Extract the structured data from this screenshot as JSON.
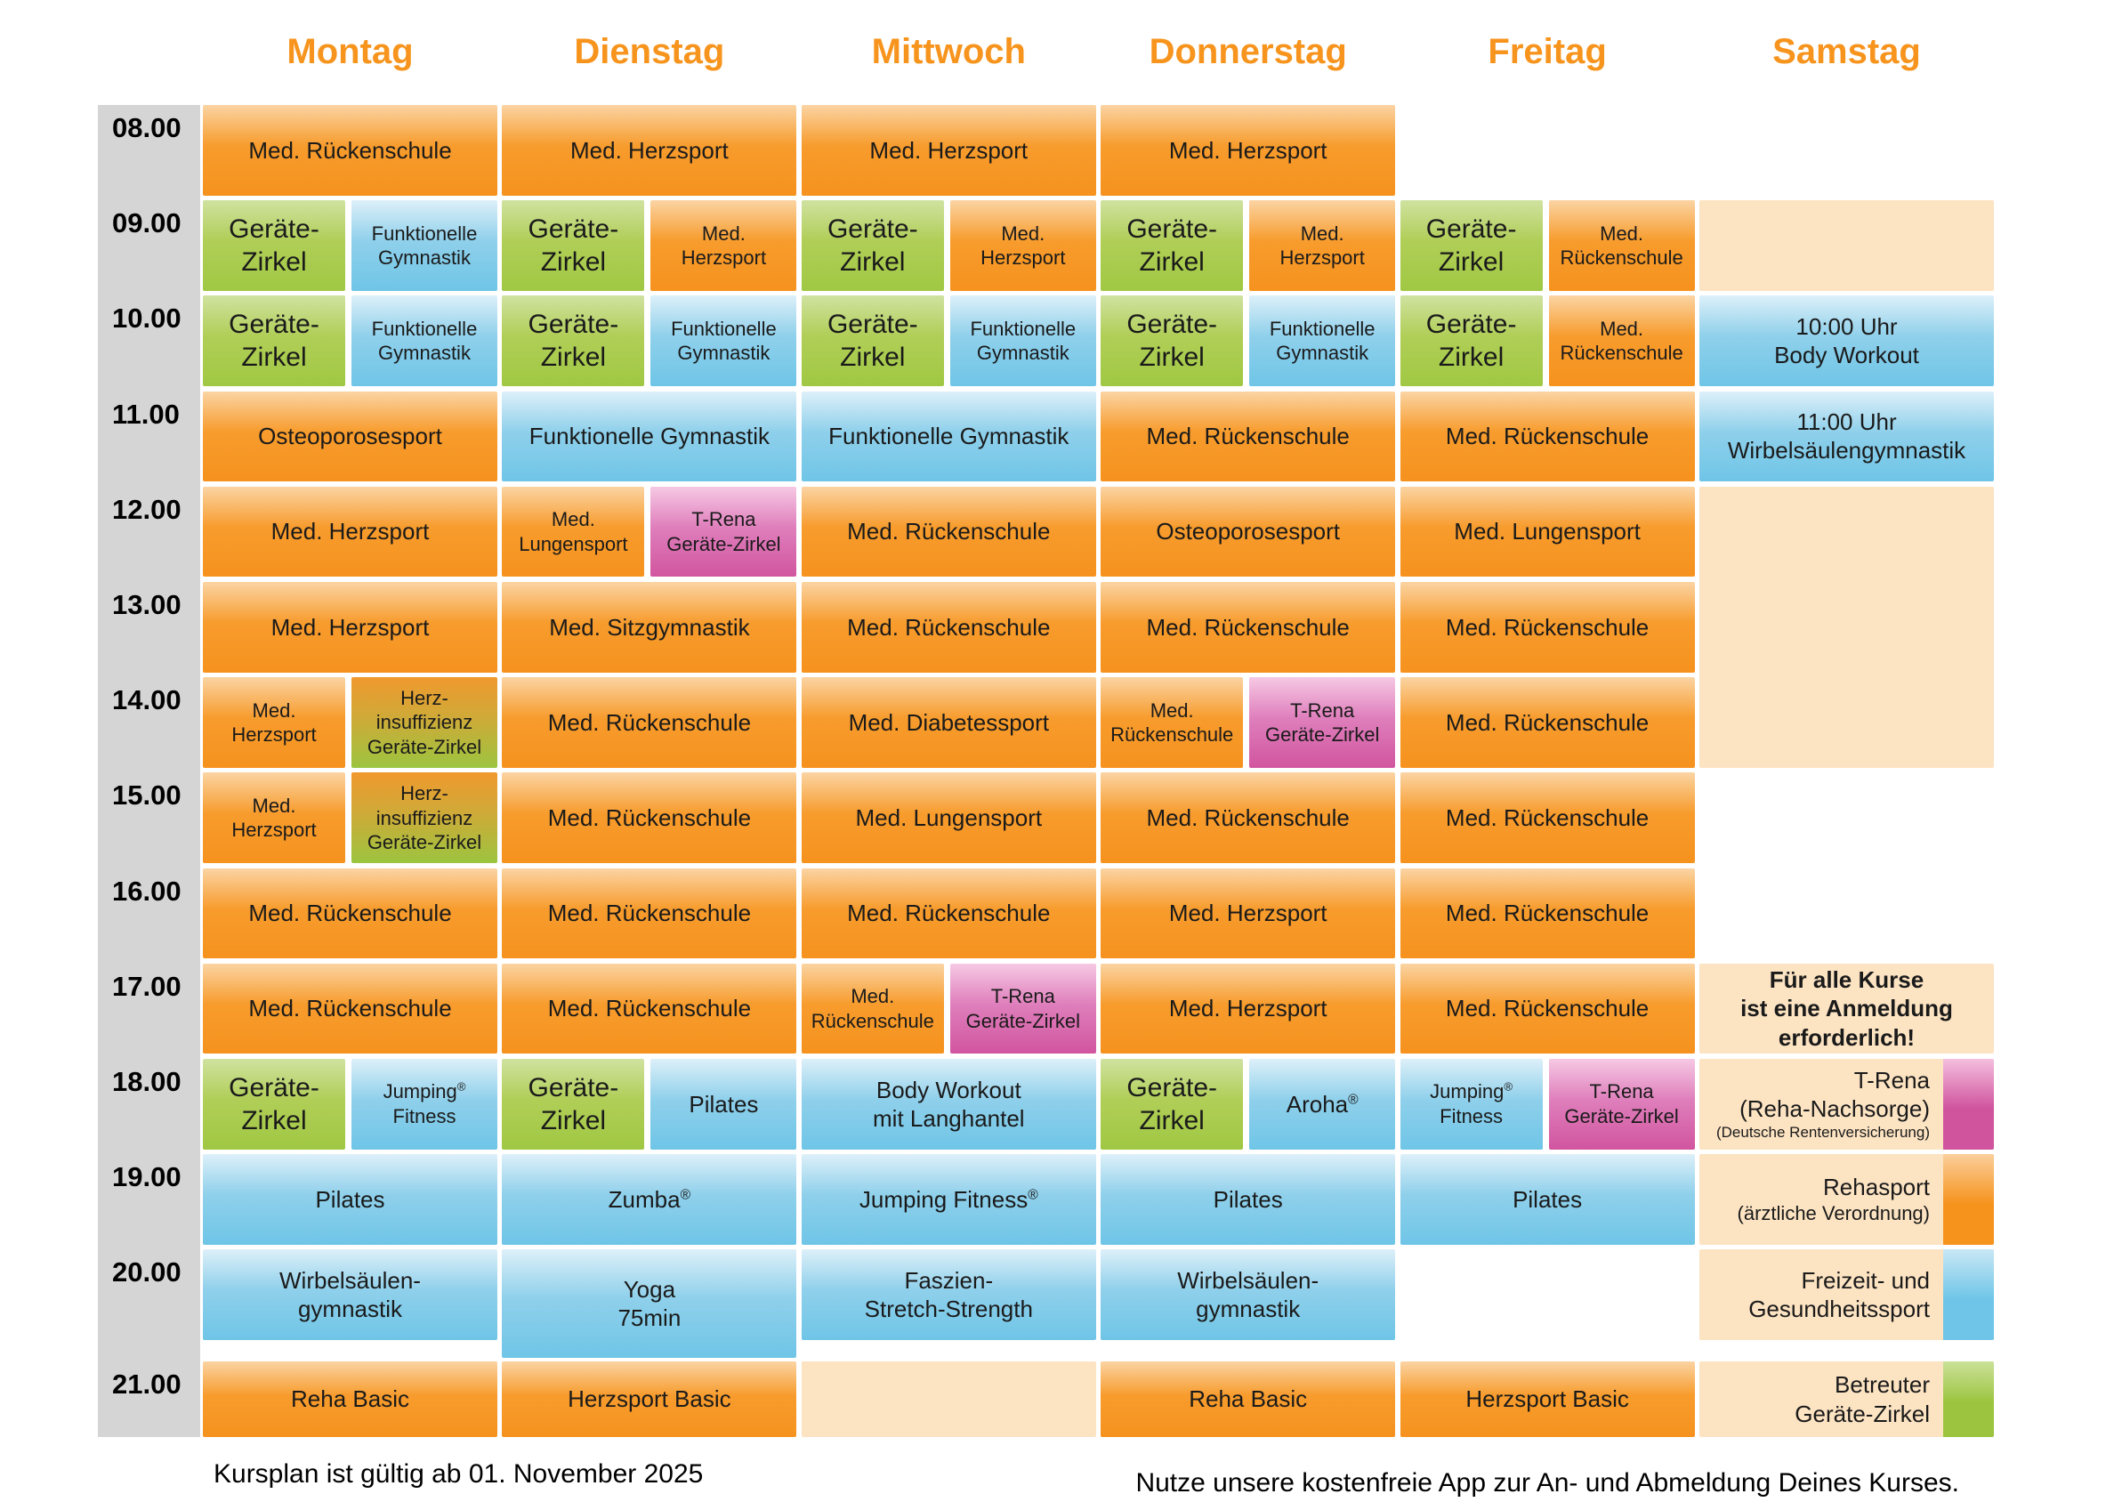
{
  "title": "Kursplan",
  "days": [
    "Montag",
    "Dienstag",
    "Mittwoch",
    "Donnerstag",
    "Freitag",
    "Samstag"
  ],
  "times": [
    "08.00",
    "09.00",
    "10.00",
    "11.00",
    "12.00",
    "13.00",
    "14.00",
    "15.00",
    "16.00",
    "17.00",
    "18.00",
    "19.00",
    "20.00",
    "21.00"
  ],
  "captions": {
    "left": "Kursplan ist gültig ab 01. November 2025",
    "right": "Nutze unsere kostenfreie App zur An- und Abmeldung Deines Kurses."
  },
  "colors": {
    "header_text": "#F7941D",
    "text": "#1A1A1A",
    "time_column": "#D5D5D5",
    "orange": [
      "#FBD4A3",
      "#F79C2D",
      "#F6921E"
    ],
    "blue": [
      "#DDF0F9",
      "#8FD0EB",
      "#6FC5E7"
    ],
    "green": [
      "#D0E2A0",
      "#B0CE57",
      "#A0C843"
    ],
    "pink": [
      "#F6C9E4",
      "#DF7FBC",
      "#D1559F"
    ],
    "ogreen": [
      "#F0992E",
      "#CFAA38",
      "#9CC43F"
    ],
    "peach": [
      "#FCE3C2"
    ]
  },
  "stripe_colors": {
    "pink": [
      "#F4BFDE",
      "#D0539E"
    ],
    "orange": [
      "#FBCF9B",
      "#F6931D"
    ],
    "blue": [
      "#C9E8F5",
      "#6FC5E7"
    ],
    "green": [
      "#CBE199",
      "#9CC43E"
    ]
  },
  "events": [
    {
      "d": 0,
      "r": 0,
      "p": "full",
      "c": "orange",
      "ls": [
        "Med. Rückenschule"
      ]
    },
    {
      "d": 0,
      "r": 1,
      "p": "l",
      "c": "green",
      "fs": "lg",
      "ls": [
        "Geräte-",
        "Zirkel"
      ]
    },
    {
      "d": 0,
      "r": 1,
      "p": "r",
      "c": "blue",
      "fs": "sm",
      "ls": [
        "Funktionelle",
        "Gymnastik"
      ]
    },
    {
      "d": 0,
      "r": 2,
      "p": "l",
      "c": "green",
      "fs": "lg",
      "ls": [
        "Geräte-",
        "Zirkel"
      ]
    },
    {
      "d": 0,
      "r": 2,
      "p": "r",
      "c": "blue",
      "fs": "sm",
      "ls": [
        "Funktionelle",
        "Gymnastik"
      ]
    },
    {
      "d": 0,
      "r": 3,
      "p": "full",
      "c": "orange",
      "ls": [
        "Osteoporosesport"
      ]
    },
    {
      "d": 0,
      "r": 4,
      "p": "full",
      "c": "orange",
      "ls": [
        "Med. Herzsport"
      ]
    },
    {
      "d": 0,
      "r": 5,
      "p": "full",
      "c": "orange",
      "ls": [
        "Med. Herzsport"
      ]
    },
    {
      "d": 0,
      "r": 6,
      "p": "l",
      "c": "orange",
      "fs": "sm",
      "ls": [
        "Med.",
        "Herzsport"
      ]
    },
    {
      "d": 0,
      "r": 6,
      "p": "r",
      "c": "ogreen",
      "fs": "sm",
      "ls": [
        "Herz-",
        "insuffizienz",
        "Geräte-Zirkel"
      ]
    },
    {
      "d": 0,
      "r": 7,
      "p": "l",
      "c": "orange",
      "fs": "sm",
      "ls": [
        "Med.",
        "Herzsport"
      ]
    },
    {
      "d": 0,
      "r": 7,
      "p": "r",
      "c": "ogreen",
      "fs": "sm",
      "ls": [
        "Herz-",
        "insuffizienz",
        "Geräte-Zirkel"
      ]
    },
    {
      "d": 0,
      "r": 8,
      "p": "full",
      "c": "orange",
      "ls": [
        "Med. Rückenschule"
      ]
    },
    {
      "d": 0,
      "r": 9,
      "p": "full",
      "c": "orange",
      "ls": [
        "Med. Rückenschule"
      ]
    },
    {
      "d": 0,
      "r": 10,
      "p": "l",
      "c": "green",
      "fs": "lg",
      "ls": [
        "Geräte-",
        "Zirkel"
      ]
    },
    {
      "d": 0,
      "r": 10,
      "p": "r",
      "c": "blue",
      "fs": "sm",
      "ls": [
        "Jumping®",
        "Fitness"
      ]
    },
    {
      "d": 0,
      "r": 11,
      "p": "full",
      "c": "blue",
      "ls": [
        "Pilates"
      ]
    },
    {
      "d": 0,
      "r": 12,
      "p": "full",
      "c": "blue",
      "ls": [
        "Wirbelsäulen-",
        "gymnastik"
      ]
    },
    {
      "d": 0,
      "r": 13,
      "p": "full",
      "c": "orange",
      "ls": [
        "Reha Basic"
      ]
    },
    {
      "d": 1,
      "r": 0,
      "p": "full",
      "c": "orange",
      "ls": [
        "Med. Herzsport"
      ]
    },
    {
      "d": 1,
      "r": 1,
      "p": "l",
      "c": "green",
      "fs": "lg",
      "ls": [
        "Geräte-",
        "Zirkel"
      ]
    },
    {
      "d": 1,
      "r": 1,
      "p": "r",
      "c": "orange",
      "fs": "sm",
      "ls": [
        "Med.",
        "Herzsport"
      ]
    },
    {
      "d": 1,
      "r": 2,
      "p": "l",
      "c": "green",
      "fs": "lg",
      "ls": [
        "Geräte-",
        "Zirkel"
      ]
    },
    {
      "d": 1,
      "r": 2,
      "p": "r",
      "c": "blue",
      "fs": "sm",
      "ls": [
        "Funktionelle",
        "Gymnastik"
      ]
    },
    {
      "d": 1,
      "r": 3,
      "p": "full",
      "c": "blue",
      "ls": [
        "Funktionelle Gymnastik"
      ]
    },
    {
      "d": 1,
      "r": 4,
      "p": "l",
      "c": "orange",
      "fs": "sm",
      "ls": [
        "Med.",
        "Lungensport"
      ]
    },
    {
      "d": 1,
      "r": 4,
      "p": "r",
      "c": "pink",
      "fs": "sm",
      "ls": [
        "T-Rena",
        "Geräte-Zirkel"
      ]
    },
    {
      "d": 1,
      "r": 5,
      "p": "full",
      "c": "orange",
      "ls": [
        "Med. Sitzgymnastik"
      ]
    },
    {
      "d": 1,
      "r": 6,
      "p": "full",
      "c": "orange",
      "ls": [
        "Med. Rückenschule"
      ]
    },
    {
      "d": 1,
      "r": 7,
      "p": "full",
      "c": "orange",
      "ls": [
        "Med. Rückenschule"
      ]
    },
    {
      "d": 1,
      "r": 8,
      "p": "full",
      "c": "orange",
      "ls": [
        "Med. Rückenschule"
      ]
    },
    {
      "d": 1,
      "r": 9,
      "p": "full",
      "c": "orange",
      "ls": [
        "Med. Rückenschule"
      ]
    },
    {
      "d": 1,
      "r": 10,
      "p": "l",
      "c": "green",
      "fs": "lg",
      "ls": [
        "Geräte-",
        "Zirkel"
      ]
    },
    {
      "d": 1,
      "r": 10,
      "p": "r",
      "c": "blue",
      "ls": [
        "Pilates"
      ]
    },
    {
      "d": 1,
      "r": 11,
      "p": "full",
      "c": "blue",
      "ls": [
        "Zumba®"
      ]
    },
    {
      "d": 1,
      "r": 12,
      "p": "full",
      "c": "blue",
      "hf": 1.2,
      "ls": [
        "Yoga",
        "75min"
      ]
    },
    {
      "d": 1,
      "r": 13,
      "p": "full",
      "c": "orange",
      "ls": [
        "Herzsport Basic"
      ]
    },
    {
      "d": 2,
      "r": 0,
      "p": "full",
      "c": "orange",
      "ls": [
        "Med. Herzsport"
      ]
    },
    {
      "d": 2,
      "r": 1,
      "p": "l",
      "c": "green",
      "fs": "lg",
      "ls": [
        "Geräte-",
        "Zirkel"
      ]
    },
    {
      "d": 2,
      "r": 1,
      "p": "r",
      "c": "orange",
      "fs": "sm",
      "ls": [
        "Med.",
        "Herzsport"
      ]
    },
    {
      "d": 2,
      "r": 2,
      "p": "l",
      "c": "green",
      "fs": "lg",
      "ls": [
        "Geräte-",
        "Zirkel"
      ]
    },
    {
      "d": 2,
      "r": 2,
      "p": "r",
      "c": "blue",
      "fs": "sm",
      "ls": [
        "Funktionelle",
        "Gymnastik"
      ]
    },
    {
      "d": 2,
      "r": 3,
      "p": "full",
      "c": "blue",
      "ls": [
        "Funktionelle Gymnastik"
      ]
    },
    {
      "d": 2,
      "r": 4,
      "p": "full",
      "c": "orange",
      "ls": [
        "Med. Rückenschule"
      ]
    },
    {
      "d": 2,
      "r": 5,
      "p": "full",
      "c": "orange",
      "ls": [
        "Med. Rückenschule"
      ]
    },
    {
      "d": 2,
      "r": 6,
      "p": "full",
      "c": "orange",
      "ls": [
        "Med. Diabetessport"
      ]
    },
    {
      "d": 2,
      "r": 7,
      "p": "full",
      "c": "orange",
      "ls": [
        "Med. Lungensport"
      ]
    },
    {
      "d": 2,
      "r": 8,
      "p": "full",
      "c": "orange",
      "ls": [
        "Med. Rückenschule"
      ]
    },
    {
      "d": 2,
      "r": 9,
      "p": "l",
      "c": "orange",
      "fs": "sm",
      "ls": [
        "Med.",
        "Rückenschule"
      ]
    },
    {
      "d": 2,
      "r": 9,
      "p": "r",
      "c": "pink",
      "fs": "sm",
      "ls": [
        "T-Rena",
        "Geräte-Zirkel"
      ]
    },
    {
      "d": 2,
      "r": 10,
      "p": "full",
      "c": "blue",
      "ls": [
        "Body Workout",
        "mit Langhantel"
      ]
    },
    {
      "d": 2,
      "r": 11,
      "p": "full",
      "c": "blue",
      "ls": [
        "Jumping Fitness®"
      ]
    },
    {
      "d": 2,
      "r": 12,
      "p": "full",
      "c": "blue",
      "ls": [
        "Faszien-",
        "Stretch-Strength"
      ]
    },
    {
      "d": 2,
      "r": 13,
      "p": "full",
      "c": "peach",
      "ls": []
    },
    {
      "d": 3,
      "r": 0,
      "p": "full",
      "c": "orange",
      "ls": [
        "Med. Herzsport"
      ]
    },
    {
      "d": 3,
      "r": 1,
      "p": "l",
      "c": "green",
      "fs": "lg",
      "ls": [
        "Geräte-",
        "Zirkel"
      ]
    },
    {
      "d": 3,
      "r": 1,
      "p": "r",
      "c": "orange",
      "fs": "sm",
      "ls": [
        "Med.",
        "Herzsport"
      ]
    },
    {
      "d": 3,
      "r": 2,
      "p": "l",
      "c": "green",
      "fs": "lg",
      "ls": [
        "Geräte-",
        "Zirkel"
      ]
    },
    {
      "d": 3,
      "r": 2,
      "p": "r",
      "c": "blue",
      "fs": "sm",
      "ls": [
        "Funktionelle",
        "Gymnastik"
      ]
    },
    {
      "d": 3,
      "r": 3,
      "p": "full",
      "c": "orange",
      "ls": [
        "Med. Rückenschule"
      ]
    },
    {
      "d": 3,
      "r": 4,
      "p": "full",
      "c": "orange",
      "ls": [
        "Osteoporosesport"
      ]
    },
    {
      "d": 3,
      "r": 5,
      "p": "full",
      "c": "orange",
      "ls": [
        "Med. Rückenschule"
      ]
    },
    {
      "d": 3,
      "r": 6,
      "p": "l",
      "c": "orange",
      "fs": "sm",
      "ls": [
        "Med.",
        "Rückenschule"
      ]
    },
    {
      "d": 3,
      "r": 6,
      "p": "r",
      "c": "pink",
      "fs": "sm",
      "ls": [
        "T-Rena",
        "Geräte-Zirkel"
      ]
    },
    {
      "d": 3,
      "r": 7,
      "p": "full",
      "c": "orange",
      "ls": [
        "Med. Rückenschule"
      ]
    },
    {
      "d": 3,
      "r": 8,
      "p": "full",
      "c": "orange",
      "ls": [
        "Med. Herzsport"
      ]
    },
    {
      "d": 3,
      "r": 9,
      "p": "full",
      "c": "orange",
      "ls": [
        "Med. Herzsport"
      ]
    },
    {
      "d": 3,
      "r": 10,
      "p": "l",
      "c": "green",
      "fs": "lg",
      "ls": [
        "Geräte-",
        "Zirkel"
      ]
    },
    {
      "d": 3,
      "r": 10,
      "p": "r",
      "c": "blue",
      "ls": [
        "Aroha®"
      ]
    },
    {
      "d": 3,
      "r": 11,
      "p": "full",
      "c": "blue",
      "ls": [
        "Pilates"
      ]
    },
    {
      "d": 3,
      "r": 12,
      "p": "full",
      "c": "blue",
      "ls": [
        "Wirbelsäulen-",
        "gymnastik"
      ]
    },
    {
      "d": 3,
      "r": 13,
      "p": "full",
      "c": "orange",
      "ls": [
        "Reha Basic"
      ]
    },
    {
      "d": 4,
      "r": 1,
      "p": "l",
      "c": "green",
      "fs": "lg",
      "ls": [
        "Geräte-",
        "Zirkel"
      ]
    },
    {
      "d": 4,
      "r": 1,
      "p": "r",
      "c": "orange",
      "fs": "sm",
      "ls": [
        "Med.",
        "Rückenschule"
      ]
    },
    {
      "d": 4,
      "r": 2,
      "p": "l",
      "c": "green",
      "fs": "lg",
      "ls": [
        "Geräte-",
        "Zirkel"
      ]
    },
    {
      "d": 4,
      "r": 2,
      "p": "r",
      "c": "orange",
      "fs": "sm",
      "ls": [
        "Med.",
        "Rückenschule"
      ]
    },
    {
      "d": 4,
      "r": 3,
      "p": "full",
      "c": "orange",
      "ls": [
        "Med. Rückenschule"
      ]
    },
    {
      "d": 4,
      "r": 4,
      "p": "full",
      "c": "orange",
      "ls": [
        "Med. Lungensport"
      ]
    },
    {
      "d": 4,
      "r": 5,
      "p": "full",
      "c": "orange",
      "ls": [
        "Med. Rückenschule"
      ]
    },
    {
      "d": 4,
      "r": 6,
      "p": "full",
      "c": "orange",
      "ls": [
        "Med. Rückenschule"
      ]
    },
    {
      "d": 4,
      "r": 7,
      "p": "full",
      "c": "orange",
      "ls": [
        "Med. Rückenschule"
      ]
    },
    {
      "d": 4,
      "r": 8,
      "p": "full",
      "c": "orange",
      "ls": [
        "Med. Rückenschule"
      ]
    },
    {
      "d": 4,
      "r": 9,
      "p": "full",
      "c": "orange",
      "ls": [
        "Med. Rückenschule"
      ]
    },
    {
      "d": 4,
      "r": 10,
      "p": "l",
      "c": "blue",
      "fs": "sm",
      "ls": [
        "Jumping®",
        "Fitness"
      ]
    },
    {
      "d": 4,
      "r": 10,
      "p": "r",
      "c": "pink",
      "fs": "sm",
      "ls": [
        "T-Rena",
        "Geräte-Zirkel"
      ]
    },
    {
      "d": 4,
      "r": 11,
      "p": "full",
      "c": "blue",
      "ls": [
        "Pilates"
      ]
    },
    {
      "d": 4,
      "r": 13,
      "p": "full",
      "c": "orange",
      "ls": [
        "Herzsport Basic"
      ]
    },
    {
      "d": 5,
      "r": 1,
      "p": "full",
      "c": "peach",
      "ls": []
    },
    {
      "d": 5,
      "r": 2,
      "p": "full",
      "c": "blue",
      "ls": [
        "10:00 Uhr",
        "Body Workout"
      ]
    },
    {
      "d": 5,
      "r": 3,
      "p": "full",
      "c": "blue",
      "ls": [
        "11:00 Uhr",
        "Wirbelsäulengymnastik"
      ]
    },
    {
      "d": 5,
      "r": 4,
      "p": "full",
      "c": "peach",
      "rs": 3,
      "ls": []
    },
    {
      "d": 5,
      "r": 9,
      "p": "full",
      "c": "peach",
      "bold": true,
      "ls": [
        "Für alle Kurse",
        "ist eine Anmeldung",
        "erforderlich!"
      ]
    },
    {
      "d": 5,
      "r": 10,
      "p": "full",
      "c": "peach",
      "stripe": "pink",
      "align": "right",
      "legend": true,
      "ls": [
        "T-Rena",
        "(Reha-Nachsorge)",
        {
          "t": "(Deutsche Rentenversicherung)",
          "s": "xs"
        }
      ]
    },
    {
      "d": 5,
      "r": 11,
      "p": "full",
      "c": "peach",
      "stripe": "orange",
      "align": "right",
      "legend": true,
      "ls": [
        "Rehasport",
        {
          "t": "(ärztliche Verordnung)",
          "s": "sm"
        }
      ]
    },
    {
      "d": 5,
      "r": 12,
      "p": "full",
      "c": "peach",
      "stripe": "blue",
      "align": "right",
      "legend": true,
      "ls": [
        "Freizeit- und",
        "Gesundheitssport"
      ]
    },
    {
      "d": 5,
      "r": 13,
      "p": "full",
      "c": "peach",
      "stripe": "green",
      "align": "right",
      "legend": true,
      "ls": [
        "Betreuter",
        "Geräte-Zirkel"
      ]
    }
  ]
}
